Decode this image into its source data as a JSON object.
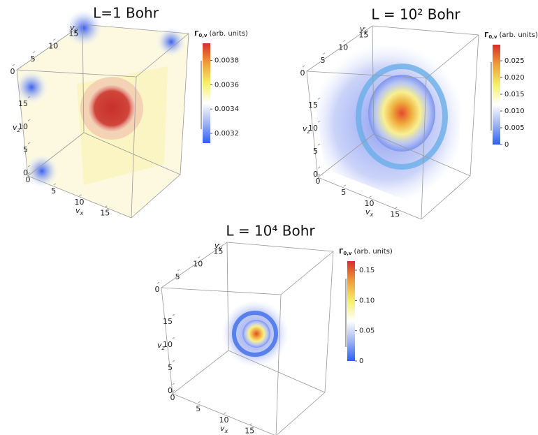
{
  "chart_data": [
    {
      "type": "volume",
      "title": "L=1 Bohr",
      "x_label": {
        "base": "v",
        "sub": "x"
      },
      "y_label": {
        "base": "v",
        "sub": "y"
      },
      "z_label": {
        "base": "v",
        "sub": "z"
      },
      "xlim": [
        0,
        17
      ],
      "ylim": [
        0,
        17
      ],
      "zlim": [
        0,
        17
      ],
      "xticks": [
        0,
        5,
        10,
        15
      ],
      "yticks": [
        0,
        5,
        10,
        15
      ],
      "zticks": [
        0,
        5,
        10,
        15
      ],
      "colorbar_label": {
        "symbol": "Γ",
        "sub": "0,v",
        "units": "(arb. units)"
      },
      "clim": [
        0.00312,
        0.00394
      ],
      "cticks": [
        0.0032,
        0.0034,
        0.0036,
        0.0038
      ],
      "colorbar_colors": [
        "#2f5ff0",
        "#9fb4f0",
        "#ffffff",
        "#f6ef6a",
        "#eca03c",
        "#d42f2a"
      ]
    },
    {
      "type": "volume",
      "title": "L = 10² Bohr",
      "x_label": {
        "base": "v",
        "sub": "x"
      },
      "y_label": {
        "base": "v",
        "sub": "y"
      },
      "z_label": {
        "base": "v",
        "sub": "z"
      },
      "xlim": [
        0,
        17
      ],
      "ylim": [
        0,
        17
      ],
      "zlim": [
        0,
        17
      ],
      "xticks": [
        0,
        5,
        10,
        15
      ],
      "yticks": [
        0,
        5,
        10,
        15
      ],
      "zticks": [
        0,
        5,
        10,
        15
      ],
      "colorbar_label": {
        "symbol": "Γ",
        "sub": "0,v",
        "units": "(arb. units)"
      },
      "clim": [
        0,
        0.0298
      ],
      "cticks": [
        0,
        0.005,
        {
          "value": 0.01,
          "label": "0.010"
        },
        0.015,
        {
          "value": 0.02,
          "label": "0.020"
        },
        0.025
      ],
      "colorbar_colors": [
        "#2f5ff0",
        "#9fb4f0",
        "#ffffff",
        "#f6ef6a",
        "#eca03c",
        "#d42f2a"
      ]
    },
    {
      "type": "volume",
      "title": "L = 10⁴ Bohr",
      "x_label": {
        "base": "v",
        "sub": "x"
      },
      "y_label": {
        "base": "v",
        "sub": "y"
      },
      "z_label": {
        "base": "v",
        "sub": "z"
      },
      "xlim": [
        0,
        17
      ],
      "ylim": [
        0,
        17
      ],
      "zlim": [
        0,
        17
      ],
      "xticks": [
        0,
        5,
        10,
        15
      ],
      "yticks": [
        0,
        5,
        10,
        15
      ],
      "zticks": [
        0,
        5,
        10,
        15
      ],
      "colorbar_label": {
        "symbol": "Γ",
        "sub": "0,v",
        "units": "(arb. units)"
      },
      "clim": [
        0,
        0.165
      ],
      "cticks": [
        0,
        0.05,
        {
          "value": 0.1,
          "label": "0.10"
        },
        0.15
      ],
      "colorbar_colors": [
        "#2f5ff0",
        "#9fb4f0",
        "#ffffff",
        "#f6ef6a",
        "#eca03c",
        "#d42f2a"
      ]
    }
  ]
}
